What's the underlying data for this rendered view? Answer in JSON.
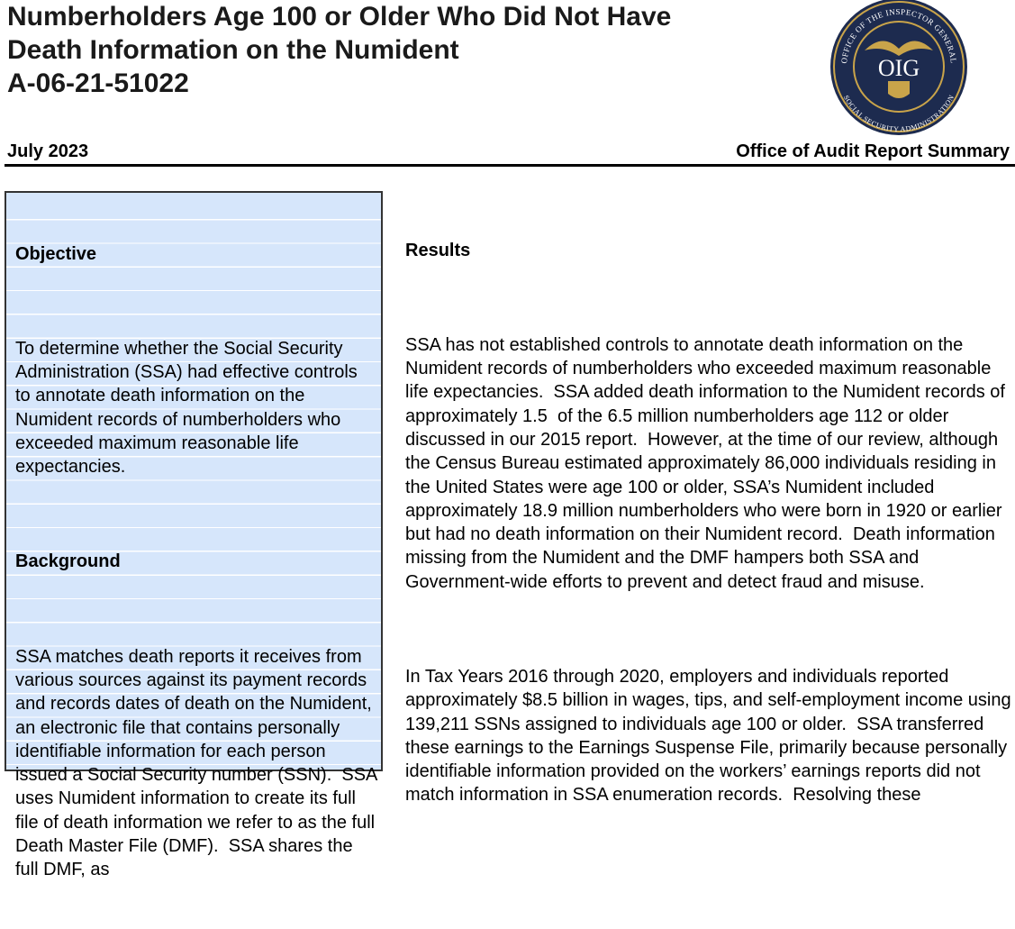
{
  "header": {
    "title_lines": [
      "Numberholders Age 100 or Older Who Did Not Have",
      "Death Information on the Numident",
      "A-06-21-51022"
    ],
    "logo": {
      "text": "OIG",
      "top_ring": "OFFICE OF THE INSPECTOR GENERAL",
      "bottom_ring": "SOCIAL SECURITY ADMINISTRATION"
    },
    "date": "July 2023",
    "office": "Office of Audit Report Summary"
  },
  "sidebar": {
    "sections": [
      {
        "heading": "Objective",
        "text": "To determine whether the Social Security Administration (SSA) had effective controls to annotate death information on the Numident records of numberholders who exceeded maximum reasonable life expectancies."
      },
      {
        "heading": "Background",
        "text": "SSA matches death reports it receives from various sources against its payment records and records dates of death on the Numident, an electronic file that contains personally identifiable information for each person issued a Social Security number (SSN).  SSA uses Numident information to create its full file of death information we refer to as the full Death Master File (DMF).  SSA shares the full DMF, as"
      }
    ]
  },
  "main": {
    "heading": "Results",
    "paragraphs": [
      "SSA has not established controls to annotate death information on the Numident records of numberholders who exceeded maximum reasonable life expectancies.  SSA added death information to the Numident records of approximately 1.5  of the 6.5 million numberholders age 112 or older discussed in our 2015 report.  However, at the time of our review, although the Census Bureau estimated approximately 86,000 individuals residing in the United States were age 100 or older, SSA’s Numident included approximately 18.9 million numberholders who were born in 1920 or earlier but had no death information on their Numident record.  Death information missing from the Numident and the DMF hampers both SSA and Government-wide efforts to prevent and detect fraud and misuse.",
      "In Tax Years 2016 through 2020, employers and individuals reported approximately $8.5 billion in wages, tips, and self-employment income using 139,211 SSNs assigned to individuals age 100 or older.  SSA transferred these earnings to the Earnings Suspense File, primarily because personally identifiable information provided on the workers’ earnings reports did not match information in SSA enumeration records.  Resolving these"
    ]
  }
}
